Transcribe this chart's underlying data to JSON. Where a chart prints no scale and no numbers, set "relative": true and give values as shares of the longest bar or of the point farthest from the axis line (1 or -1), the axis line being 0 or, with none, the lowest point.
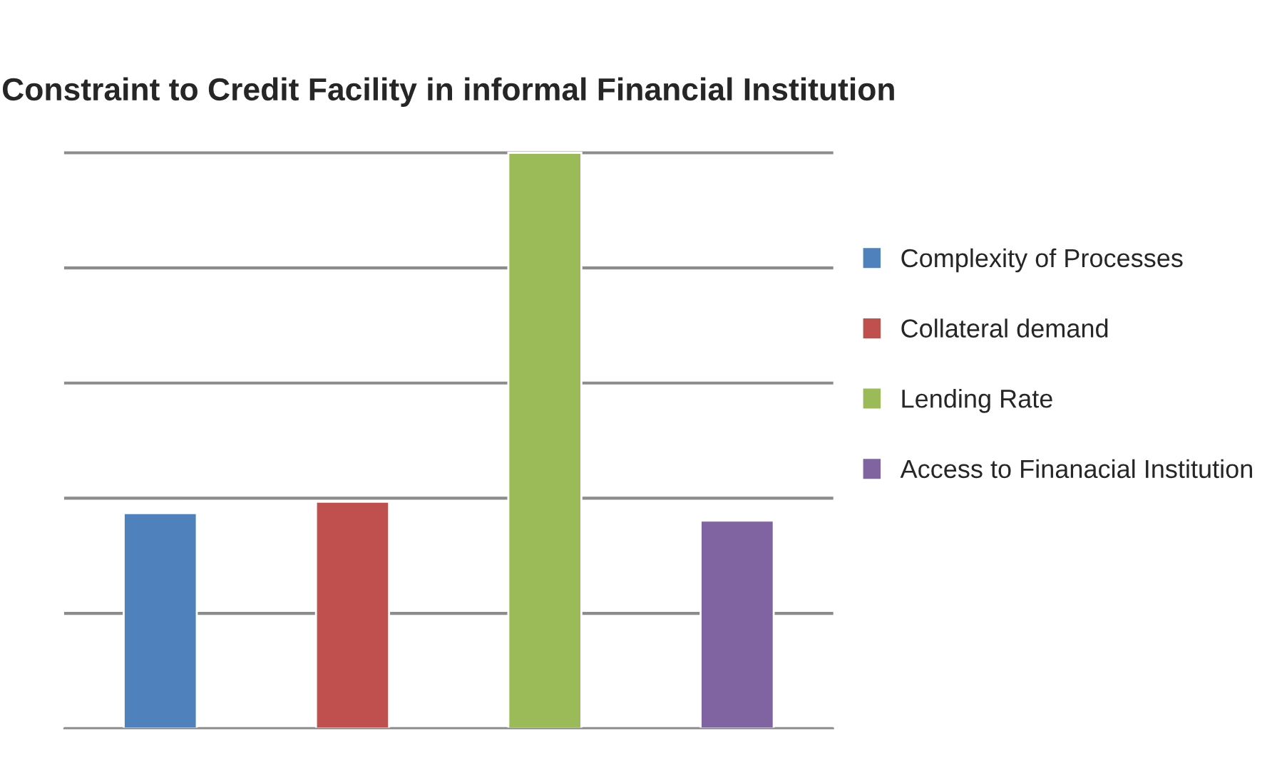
{
  "chart_data": {
    "type": "bar",
    "title": "Constraint to Credit Facility in informal Financial Institution",
    "categories": [
      null,
      null,
      null,
      null
    ],
    "relative": true,
    "grid": "y",
    "legend": "right",
    "stacked": true,
    "series": [
      {
        "name": "Complexity of Processes",
        "color": "#4f81bd",
        "values": [
          0.374,
          null,
          null,
          null
        ]
      },
      {
        "name": "Collateral demand",
        "color": "#c0504d",
        "values": [
          null,
          0.394,
          null,
          null
        ]
      },
      {
        "name": "Lending Rate",
        "color": "#9bbb59",
        "values": [
          null,
          null,
          1.0,
          null
        ]
      },
      {
        "name": "Access to Finanacial Institution",
        "color": "#8064a2",
        "values": [
          null,
          null,
          null,
          0.361
        ]
      }
    ]
  }
}
